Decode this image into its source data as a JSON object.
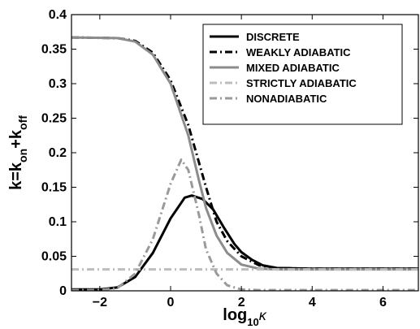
{
  "chart_data": {
    "type": "line",
    "title": "",
    "xlabel": {
      "base": "log",
      "sub": "10",
      "tail": "κ"
    },
    "ylabel": {
      "p1": "k=k",
      "sub1": "on",
      "p2": "+k",
      "sub2": "off"
    },
    "xlim": [
      -2.8,
      7
    ],
    "ylim": [
      0,
      0.4
    ],
    "grid": false,
    "legend_position": "top-right",
    "x_ticks": [
      -2,
      0,
      2,
      4,
      6
    ],
    "x_tick_labels": [
      "−2",
      "0",
      "2",
      "4",
      "6"
    ],
    "y_ticks": [
      0,
      0.05,
      0.1,
      0.15,
      0.2,
      0.25,
      0.3,
      0.35,
      0.4
    ],
    "y_tick_labels": [
      "0",
      "0.05",
      "0.1",
      "0.15",
      "0.2",
      "0.25",
      "0.3",
      "0.35",
      "0.4"
    ],
    "series": [
      {
        "name": "DISCRETE",
        "color": "#000000",
        "dash": "solid",
        "points": [
          [
            -2.8,
            0.002
          ],
          [
            -2,
            0.002
          ],
          [
            -1.5,
            0.005
          ],
          [
            -1,
            0.02
          ],
          [
            -0.5,
            0.055
          ],
          [
            0,
            0.105
          ],
          [
            0.4,
            0.135
          ],
          [
            0.6,
            0.138
          ],
          [
            0.9,
            0.133
          ],
          [
            1.2,
            0.118
          ],
          [
            1.5,
            0.092
          ],
          [
            1.8,
            0.068
          ],
          [
            2,
            0.056
          ],
          [
            2.3,
            0.045
          ],
          [
            2.6,
            0.037
          ],
          [
            3,
            0.033
          ],
          [
            4,
            0.032
          ],
          [
            5,
            0.032
          ],
          [
            7,
            0.032
          ]
        ]
      },
      {
        "name": "WEAKLY ADIABATIC",
        "color": "#000000",
        "dash": "dashdot",
        "points": [
          [
            -2.8,
            0.367
          ],
          [
            -1.5,
            0.366
          ],
          [
            -1,
            0.362
          ],
          [
            -0.5,
            0.345
          ],
          [
            0,
            0.305
          ],
          [
            0.5,
            0.24
          ],
          [
            1,
            0.15
          ],
          [
            1.3,
            0.1
          ],
          [
            1.6,
            0.072
          ],
          [
            2,
            0.05
          ],
          [
            2.5,
            0.037
          ],
          [
            3,
            0.033
          ],
          [
            4,
            0.032
          ],
          [
            7,
            0.032
          ]
        ]
      },
      {
        "name": "MIXED ADIABATIC",
        "color": "#8c8c8c",
        "dash": "solid",
        "points": [
          [
            -2.8,
            0.367
          ],
          [
            -1.5,
            0.366
          ],
          [
            -1,
            0.361
          ],
          [
            -0.5,
            0.342
          ],
          [
            0,
            0.3
          ],
          [
            0.5,
            0.225
          ],
          [
            0.8,
            0.16
          ],
          [
            1,
            0.12
          ],
          [
            1.3,
            0.08
          ],
          [
            1.6,
            0.055
          ],
          [
            2,
            0.038
          ],
          [
            2.5,
            0.032
          ],
          [
            3,
            0.031
          ],
          [
            7,
            0.031
          ]
        ]
      },
      {
        "name": "STRICTLY ADIABATIC",
        "color": "#bdbdbd",
        "dash": "dashdot",
        "points": [
          [
            -2.8,
            0.031
          ],
          [
            7,
            0.031
          ]
        ]
      },
      {
        "name": "NONADIABATIC",
        "color": "#9a9a9a",
        "dash": "dashdot",
        "points": [
          [
            -2.8,
            0.001
          ],
          [
            -2,
            0.001
          ],
          [
            -1.5,
            0.004
          ],
          [
            -1,
            0.025
          ],
          [
            -0.5,
            0.075
          ],
          [
            0,
            0.155
          ],
          [
            0.3,
            0.19
          ],
          [
            0.5,
            0.175
          ],
          [
            0.8,
            0.11
          ],
          [
            1,
            0.06
          ],
          [
            1.3,
            0.025
          ],
          [
            1.6,
            0.008
          ],
          [
            2,
            0.002
          ],
          [
            2.5,
            0.001
          ],
          [
            7,
            0.001
          ]
        ]
      }
    ]
  }
}
